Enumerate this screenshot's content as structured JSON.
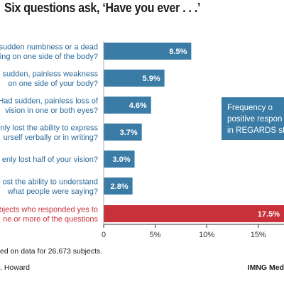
{
  "title": "Six questions ask, ‘Have you ever . . .’",
  "footnote": "ed on data for 26,673 subjects.",
  "credit": ". Howard",
  "source": "IMNG Med",
  "colors": {
    "bar": "#3a7ca6",
    "highlight": "#c8313a",
    "question_text": "#2b6a9b",
    "highlight_text": "#c8313a",
    "callout_bg": "#3a7ca6",
    "axis": "#333333"
  },
  "chart_data": {
    "type": "bar",
    "orientation": "horizontal",
    "categories": [
      [
        "sudden numbness or a dead",
        "ing on one side of the body?"
      ],
      [
        "d sudden, painless weakness",
        "on one side of your body?"
      ],
      [
        "Had sudden, painless loss of",
        "vision in one or both eyes?"
      ],
      [
        "nly lost the ability to express",
        "urself verbally or in writing?"
      ],
      [
        "enly lost half of your vision?"
      ],
      [
        "ost the ability to understand",
        "what people were saying?"
      ],
      [
        "bjects who responded yes to",
        "ne or more of the questions"
      ]
    ],
    "values": [
      8.5,
      5.9,
      4.6,
      3.7,
      3.0,
      2.8,
      17.5
    ],
    "value_labels": [
      "8.5%",
      "5.9%",
      "4.6%",
      "3.7%",
      "3.0%",
      "2.8%",
      "17.5%"
    ],
    "highlight_index": 6,
    "x_ticks": [
      0,
      5,
      10,
      15
    ],
    "x_tick_labels": [
      "0",
      "5%",
      "10%",
      "15%"
    ],
    "xlim": [
      0,
      17.5
    ],
    "grid": false,
    "callout": [
      "Frequency o",
      "positive respon",
      "in REGARDS stu"
    ]
  }
}
